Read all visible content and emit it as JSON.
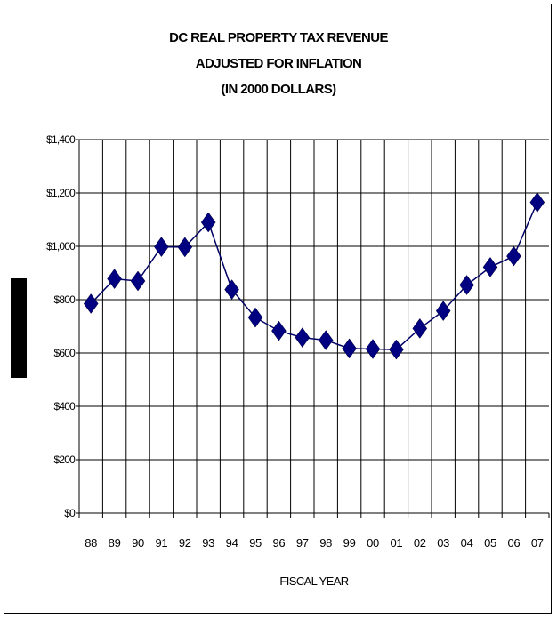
{
  "chart_data": {
    "type": "line",
    "title_lines": [
      "DC REAL PROPERTY TAX REVENUE",
      "ADJUSTED FOR INFLATION",
      "(IN 2000 DOLLARS)"
    ],
    "xlabel": "FISCAL YEAR",
    "ylabel": "",
    "ylim": [
      0,
      1400
    ],
    "yticks": [
      0,
      200,
      400,
      600,
      800,
      1000,
      1200,
      1400
    ],
    "ytick_labels": [
      "$0",
      "$200",
      "$400",
      "$600",
      "$800",
      "$1,000",
      "$1,200",
      "$1,400"
    ],
    "categories": [
      "88",
      "89",
      "90",
      "91",
      "92",
      "93",
      "94",
      "95",
      "96",
      "97",
      "98",
      "99",
      "00",
      "01",
      "02",
      "03",
      "04",
      "05",
      "06",
      "07"
    ],
    "series": [
      {
        "values": [
          785,
          878,
          870,
          998,
          997,
          1090,
          838,
          733,
          683,
          658,
          648,
          617,
          615,
          613,
          692,
          758,
          855,
          922,
          963,
          1165
        ]
      }
    ],
    "grid": true,
    "marker": "diamond",
    "line_color": "#000066",
    "marker_color": "#000080"
  }
}
